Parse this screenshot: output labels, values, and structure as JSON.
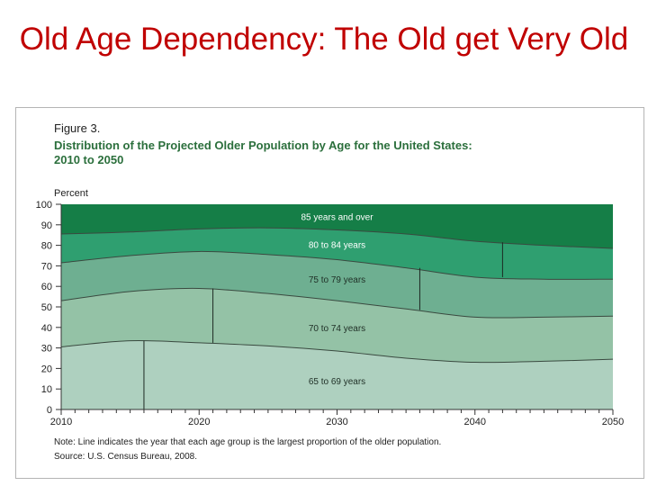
{
  "slide": {
    "title": "Old Age Dependency: The Old get Very Old"
  },
  "figure": {
    "label": "Figure 3.",
    "title_line1": "Distribution of the Projected Older Population by Age for the United States:",
    "title_line2": "2010 to 2050",
    "note": "Note: Line indicates the year that each age group is the largest proportion of the older population.",
    "source": "Source: U.S. Census Bureau, 2008."
  },
  "colors": {
    "title": "#c00000",
    "figure_title": "#2b6f3c",
    "band_65_69": "#aed0bf",
    "band_70_74": "#94c2a6",
    "band_75_79": "#6eaf91",
    "band_80_84": "#2f9f70",
    "band_85_plus": "#157e47",
    "band_line": "#3a4a40"
  },
  "chart_data": {
    "type": "area",
    "stacked": true,
    "title": "Distribution of the Projected Older Population by Age for the United States: 2010 to 2050",
    "ylabel": "Percent",
    "xlabel": "",
    "xlim": [
      2010,
      2050
    ],
    "ylim": [
      0,
      100
    ],
    "xticks": [
      2010,
      2020,
      2030,
      2040,
      2050
    ],
    "yticks": [
      0,
      10,
      20,
      30,
      40,
      50,
      60,
      70,
      80,
      90,
      100
    ],
    "x": [
      2010,
      2015,
      2020,
      2025,
      2030,
      2035,
      2040,
      2045,
      2050
    ],
    "boundaries": [
      {
        "name": "65-69 upper",
        "values": [
          30.5,
          33.5,
          32.5,
          31,
          28.5,
          25,
          23,
          23.5,
          24.5
        ]
      },
      {
        "name": "70-74 upper",
        "values": [
          53,
          57.5,
          59,
          56.5,
          53,
          49,
          45,
          45,
          45.5
        ]
      },
      {
        "name": "75-79 upper",
        "values": [
          71.5,
          75,
          77,
          75.5,
          73,
          69,
          64.5,
          63.5,
          63.5
        ]
      },
      {
        "name": "80-84 upper",
        "values": [
          85.5,
          86.5,
          88,
          88.5,
          87.5,
          85.5,
          82,
          80,
          78.5
        ]
      }
    ],
    "series": [
      {
        "name": "65 to 69 years",
        "values": [
          30.5,
          33.5,
          32.5,
          31,
          28.5,
          25,
          23,
          23.5,
          24.5
        ]
      },
      {
        "name": "70 to 74 years",
        "values": [
          22.5,
          24,
          26.5,
          25.5,
          24.5,
          24,
          22,
          21.5,
          21
        ]
      },
      {
        "name": "75 to 79 years",
        "values": [
          18.5,
          17.5,
          18,
          19,
          20,
          20,
          19.5,
          18.5,
          18
        ]
      },
      {
        "name": "80 to 84 years",
        "values": [
          14,
          11.5,
          11,
          13,
          14.5,
          16.5,
          17.5,
          16.5,
          15
        ]
      },
      {
        "name": "85 years and over",
        "values": [
          14.5,
          13.5,
          12,
          11.5,
          12.5,
          14.5,
          18,
          20,
          21.5
        ]
      }
    ],
    "band_labels": [
      {
        "text": "65 to 69 years",
        "x": 2030,
        "y": 14
      },
      {
        "text": "70 to 74 years",
        "x": 2030,
        "y": 40
      },
      {
        "text": "75 to 79 years",
        "x": 2030,
        "y": 63.5
      },
      {
        "text": "80 to 84 years",
        "x": 2030,
        "y": 80.5
      },
      {
        "text": "85 years and over",
        "x": 2030,
        "y": 94
      }
    ],
    "peak_markers": [
      {
        "group": "65 to 69 years",
        "year": 2016,
        "from": 0,
        "to": 33.5
      },
      {
        "group": "70 to 74 years",
        "year": 2021,
        "from": 32.5,
        "to": 59
      },
      {
        "group": "75 to 79 years",
        "year": 2036,
        "from": 48.5,
        "to": 69
      },
      {
        "group": "80 to 84 years",
        "year": 2042,
        "from": 64.5,
        "to": 81.5
      }
    ]
  }
}
